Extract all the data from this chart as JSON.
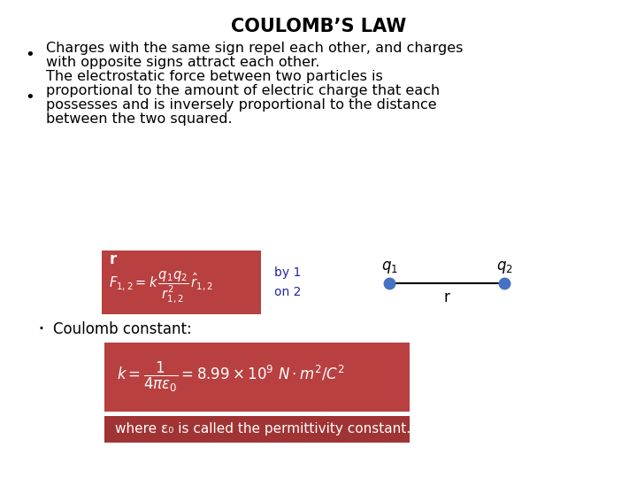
{
  "title": "COULOMB’S LAW",
  "background_color": "#ffffff",
  "title_fontsize": 15,
  "title_fontweight": "bold",
  "bullet1_line1": "Charges with the same sign repel each other, and charges",
  "bullet1_line2": "with opposite signs attract each other.",
  "bullet2_line1": "The electrostatic force between two particles is",
  "bullet2_line2": "proportional to the amount of electric charge that each",
  "bullet2_line3": "possesses and is inversely proportional to the distance",
  "bullet2_line4": "between the two squared.",
  "formula_box_color": "#b94040",
  "formula_box2_color": "#b94040",
  "where_box_color": "#a03333",
  "by1on2_color": "#2222aa",
  "charge_dot_color": "#4472c4",
  "coulomb_label": "Coulomb constant:",
  "where_text": "where ε₀ is called the permittivity constant."
}
